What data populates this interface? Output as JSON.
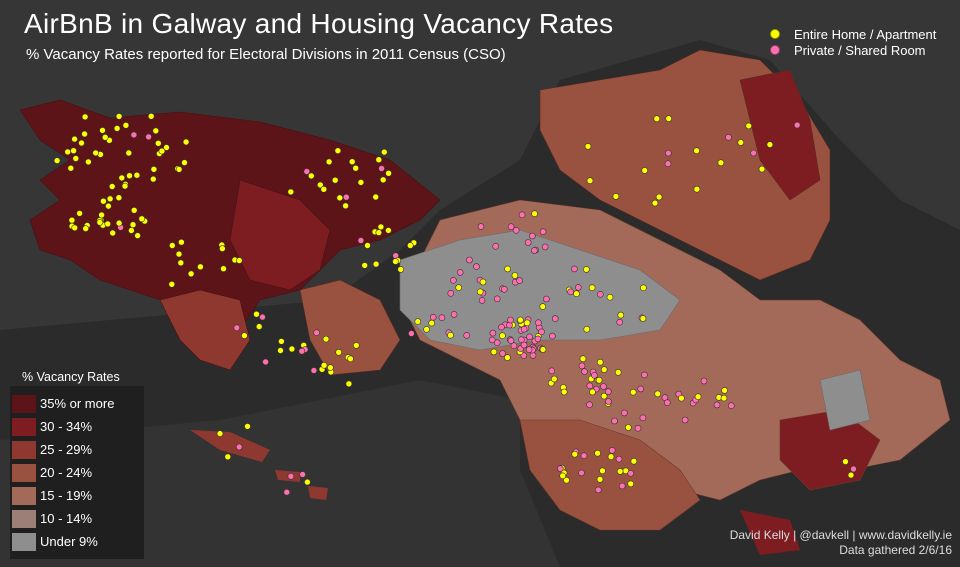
{
  "title": "AirBnB in Galway and Housing Vacancy Rates",
  "subtitle": "% Vacancy Rates reported for Electoral Divisions in 2011 Census (CSO)",
  "point_legend": [
    {
      "label": "Entire Home / Apartment",
      "color": "#ffff00"
    },
    {
      "label": "Private / Shared Room",
      "color": "#ff6fb0"
    }
  ],
  "vacancy_legend": {
    "title": "% Vacancy Rates",
    "classes": [
      {
        "label": "35% or more",
        "color": "#5c1418"
      },
      {
        "label": "30 - 34%",
        "color": "#7d1d21"
      },
      {
        "label": "25 - 29%",
        "color": "#8e3830"
      },
      {
        "label": "20 - 24%",
        "color": "#9a5240"
      },
      {
        "label": "15 - 19%",
        "color": "#a36a5a"
      },
      {
        "label": "10 - 14%",
        "color": "#9c8078"
      },
      {
        "label": "Under 9%",
        "color": "#8e8e8e"
      }
    ]
  },
  "credit": {
    "line1": "David Kelly  |  @davkell  |  www.davidkelly.ie",
    "line2": "Data gathered 2/6/16"
  },
  "colors": {
    "background": "#2b2b2b",
    "land": "#3a3a3a",
    "connemara": "#5c1418",
    "east_county": "#9a5240",
    "city": "#8e8e8e"
  }
}
